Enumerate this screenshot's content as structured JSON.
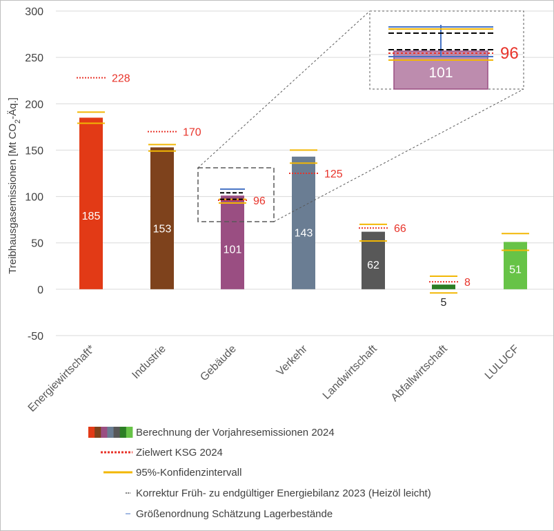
{
  "chart_data": {
    "type": "bar",
    "title": "",
    "ylabel_parts": [
      "Treibhausgasemissionen [Mt CO",
      "2",
      "-Äq.]"
    ],
    "ylim": [
      -50,
      300
    ],
    "yticks": [
      300,
      250,
      200,
      150,
      100,
      50,
      0,
      -50
    ],
    "grid": true,
    "legend_position": "bottom",
    "categories": [
      "Energiewirtschaft*",
      "Industrie",
      "Gebäude",
      "Verkehr",
      "Landwirtschaft",
      "Abfallwirtschaft",
      "LULUCF"
    ],
    "values": [
      185,
      153,
      101,
      143,
      62,
      5,
      51
    ],
    "value_labels": [
      "185",
      "153",
      "101",
      "143",
      "62",
      "5",
      "51"
    ],
    "colors": [
      "#e23a16",
      "#7e421c",
      "#9a4e82",
      "#6a7d93",
      "#585858",
      "#2c7e25",
      "#67c347"
    ],
    "targets": [
      228,
      170,
      96,
      125,
      66,
      8,
      null
    ],
    "target_labels": [
      "228",
      "170",
      "96",
      "125",
      "66",
      "8",
      ""
    ],
    "confidence_intervals": [
      [
        179,
        191
      ],
      [
        149,
        156
      ],
      [
        93,
        97
      ],
      [
        136,
        150
      ],
      [
        52,
        70
      ],
      [
        -4,
        14
      ],
      [
        42,
        60
      ]
    ],
    "gebaeude_correction_levels": [
      97,
      104
    ],
    "gebaeude_storage_estimate": [
      101,
      108
    ],
    "inset": {
      "value_label": "101",
      "target_label": "96"
    },
    "legend": [
      {
        "label": "Berechnung der Vorjahresemissionen 2024",
        "marker": "multicolor-bar"
      },
      {
        "label": "Zielwert KSG 2024",
        "marker": "dotted-red-line"
      },
      {
        "label": "95%-Konfidenzintervall",
        "marker": "yellow-line"
      },
      {
        "label": "Korrektur Früh- zu endgültiger Energiebilanz 2023 (Heizöl leicht)",
        "marker": "dashed-black-line"
      },
      {
        "label": "Größenordnung Schätzung Lagerbestände",
        "marker": "blue-line"
      }
    ],
    "series_colors": {
      "target": "#e8332a",
      "confidence": "#f2b705",
      "correction": "#000000",
      "storage": "#4472c4",
      "grid": "#d9d9d9"
    }
  }
}
